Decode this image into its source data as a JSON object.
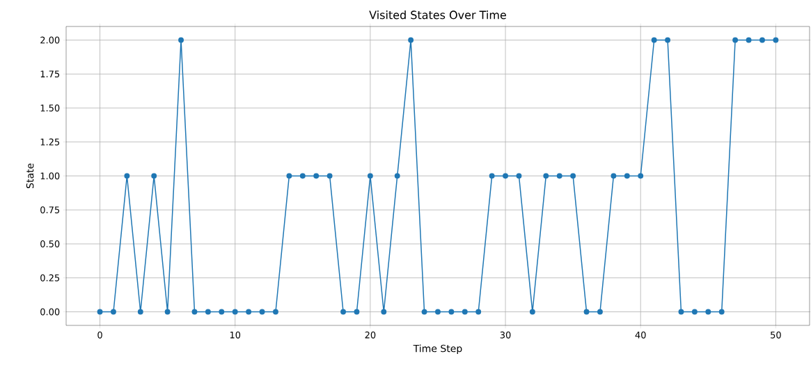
{
  "chart_data": {
    "type": "line",
    "title": "Visited States Over Time",
    "xlabel": "Time Step",
    "ylabel": "State",
    "x": [
      0,
      1,
      2,
      3,
      4,
      5,
      6,
      7,
      8,
      9,
      10,
      11,
      12,
      13,
      14,
      15,
      16,
      17,
      18,
      19,
      20,
      21,
      22,
      23,
      24,
      25,
      26,
      27,
      28,
      29,
      30,
      31,
      32,
      33,
      34,
      35,
      36,
      37,
      38,
      39,
      40,
      41,
      42,
      43,
      44,
      45,
      46,
      47,
      48,
      49,
      50
    ],
    "series": [
      {
        "color": "#1f77b4",
        "values": [
          0,
          0,
          1,
          0,
          1,
          0,
          2,
          0,
          0,
          0,
          0,
          0,
          0,
          0,
          1,
          1,
          1,
          1,
          0,
          0,
          1,
          0,
          1,
          2,
          0,
          0,
          0,
          0,
          0,
          1,
          1,
          1,
          0,
          1,
          1,
          1,
          0,
          0,
          1,
          1,
          1,
          2,
          2,
          0,
          0,
          0,
          0,
          2,
          2,
          2,
          2
        ]
      }
    ],
    "xlim": [
      -2.5,
      52.5
    ],
    "ylim": [
      -0.1,
      2.1
    ],
    "xticks": [
      0,
      10,
      20,
      30,
      40,
      50
    ],
    "yticks": [
      {
        "value": 0,
        "label": "0.00"
      },
      {
        "value": 0.25,
        "label": "0.25"
      },
      {
        "value": 0.5,
        "label": "0.50"
      },
      {
        "value": 0.75,
        "label": "0.75"
      },
      {
        "value": 1,
        "label": "1.00"
      },
      {
        "value": 1.25,
        "label": "1.25"
      },
      {
        "value": 1.5,
        "label": "1.50"
      },
      {
        "value": 1.75,
        "label": "1.75"
      },
      {
        "value": 2,
        "label": "2.00"
      }
    ],
    "grid": true,
    "marker": "circle",
    "line_style": "solid"
  }
}
